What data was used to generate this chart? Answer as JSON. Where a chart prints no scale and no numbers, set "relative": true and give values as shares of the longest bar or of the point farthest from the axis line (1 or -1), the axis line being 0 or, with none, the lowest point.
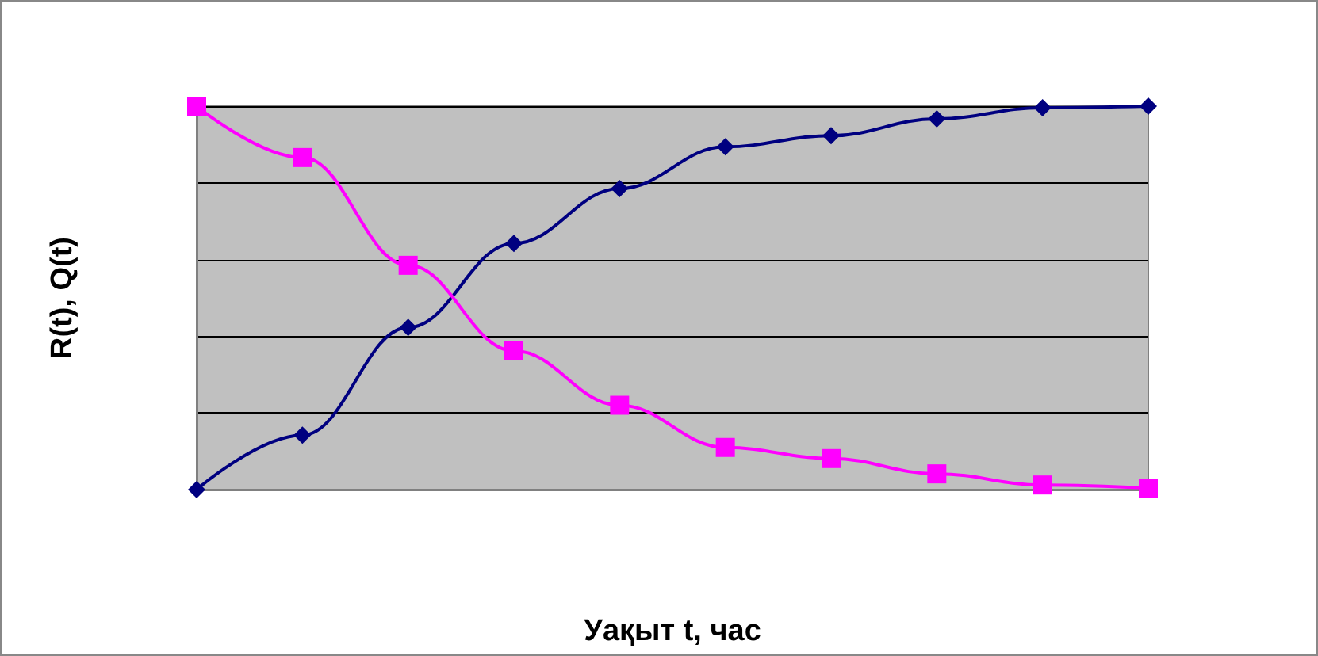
{
  "chart_data": {
    "type": "line",
    "relative": true,
    "xlabel": "Уақыт t, час",
    "ylabel": "R(t), Q(t)",
    "categories": [
      null,
      null,
      null,
      null,
      null,
      null,
      null,
      null,
      null,
      null
    ],
    "grid": "y",
    "series": [
      {
        "color": "#000080",
        "marker": "diamond",
        "values": [
          0,
          0.142,
          0.423,
          0.642,
          0.785,
          0.894,
          0.923,
          0.967,
          0.996,
          1.0
        ]
      },
      {
        "color": "#ff00ff",
        "marker": "square",
        "values": [
          1.0,
          0.866,
          0.585,
          0.362,
          0.22,
          0.11,
          0.081,
          0.041,
          0.012,
          0.004
        ]
      }
    ]
  }
}
